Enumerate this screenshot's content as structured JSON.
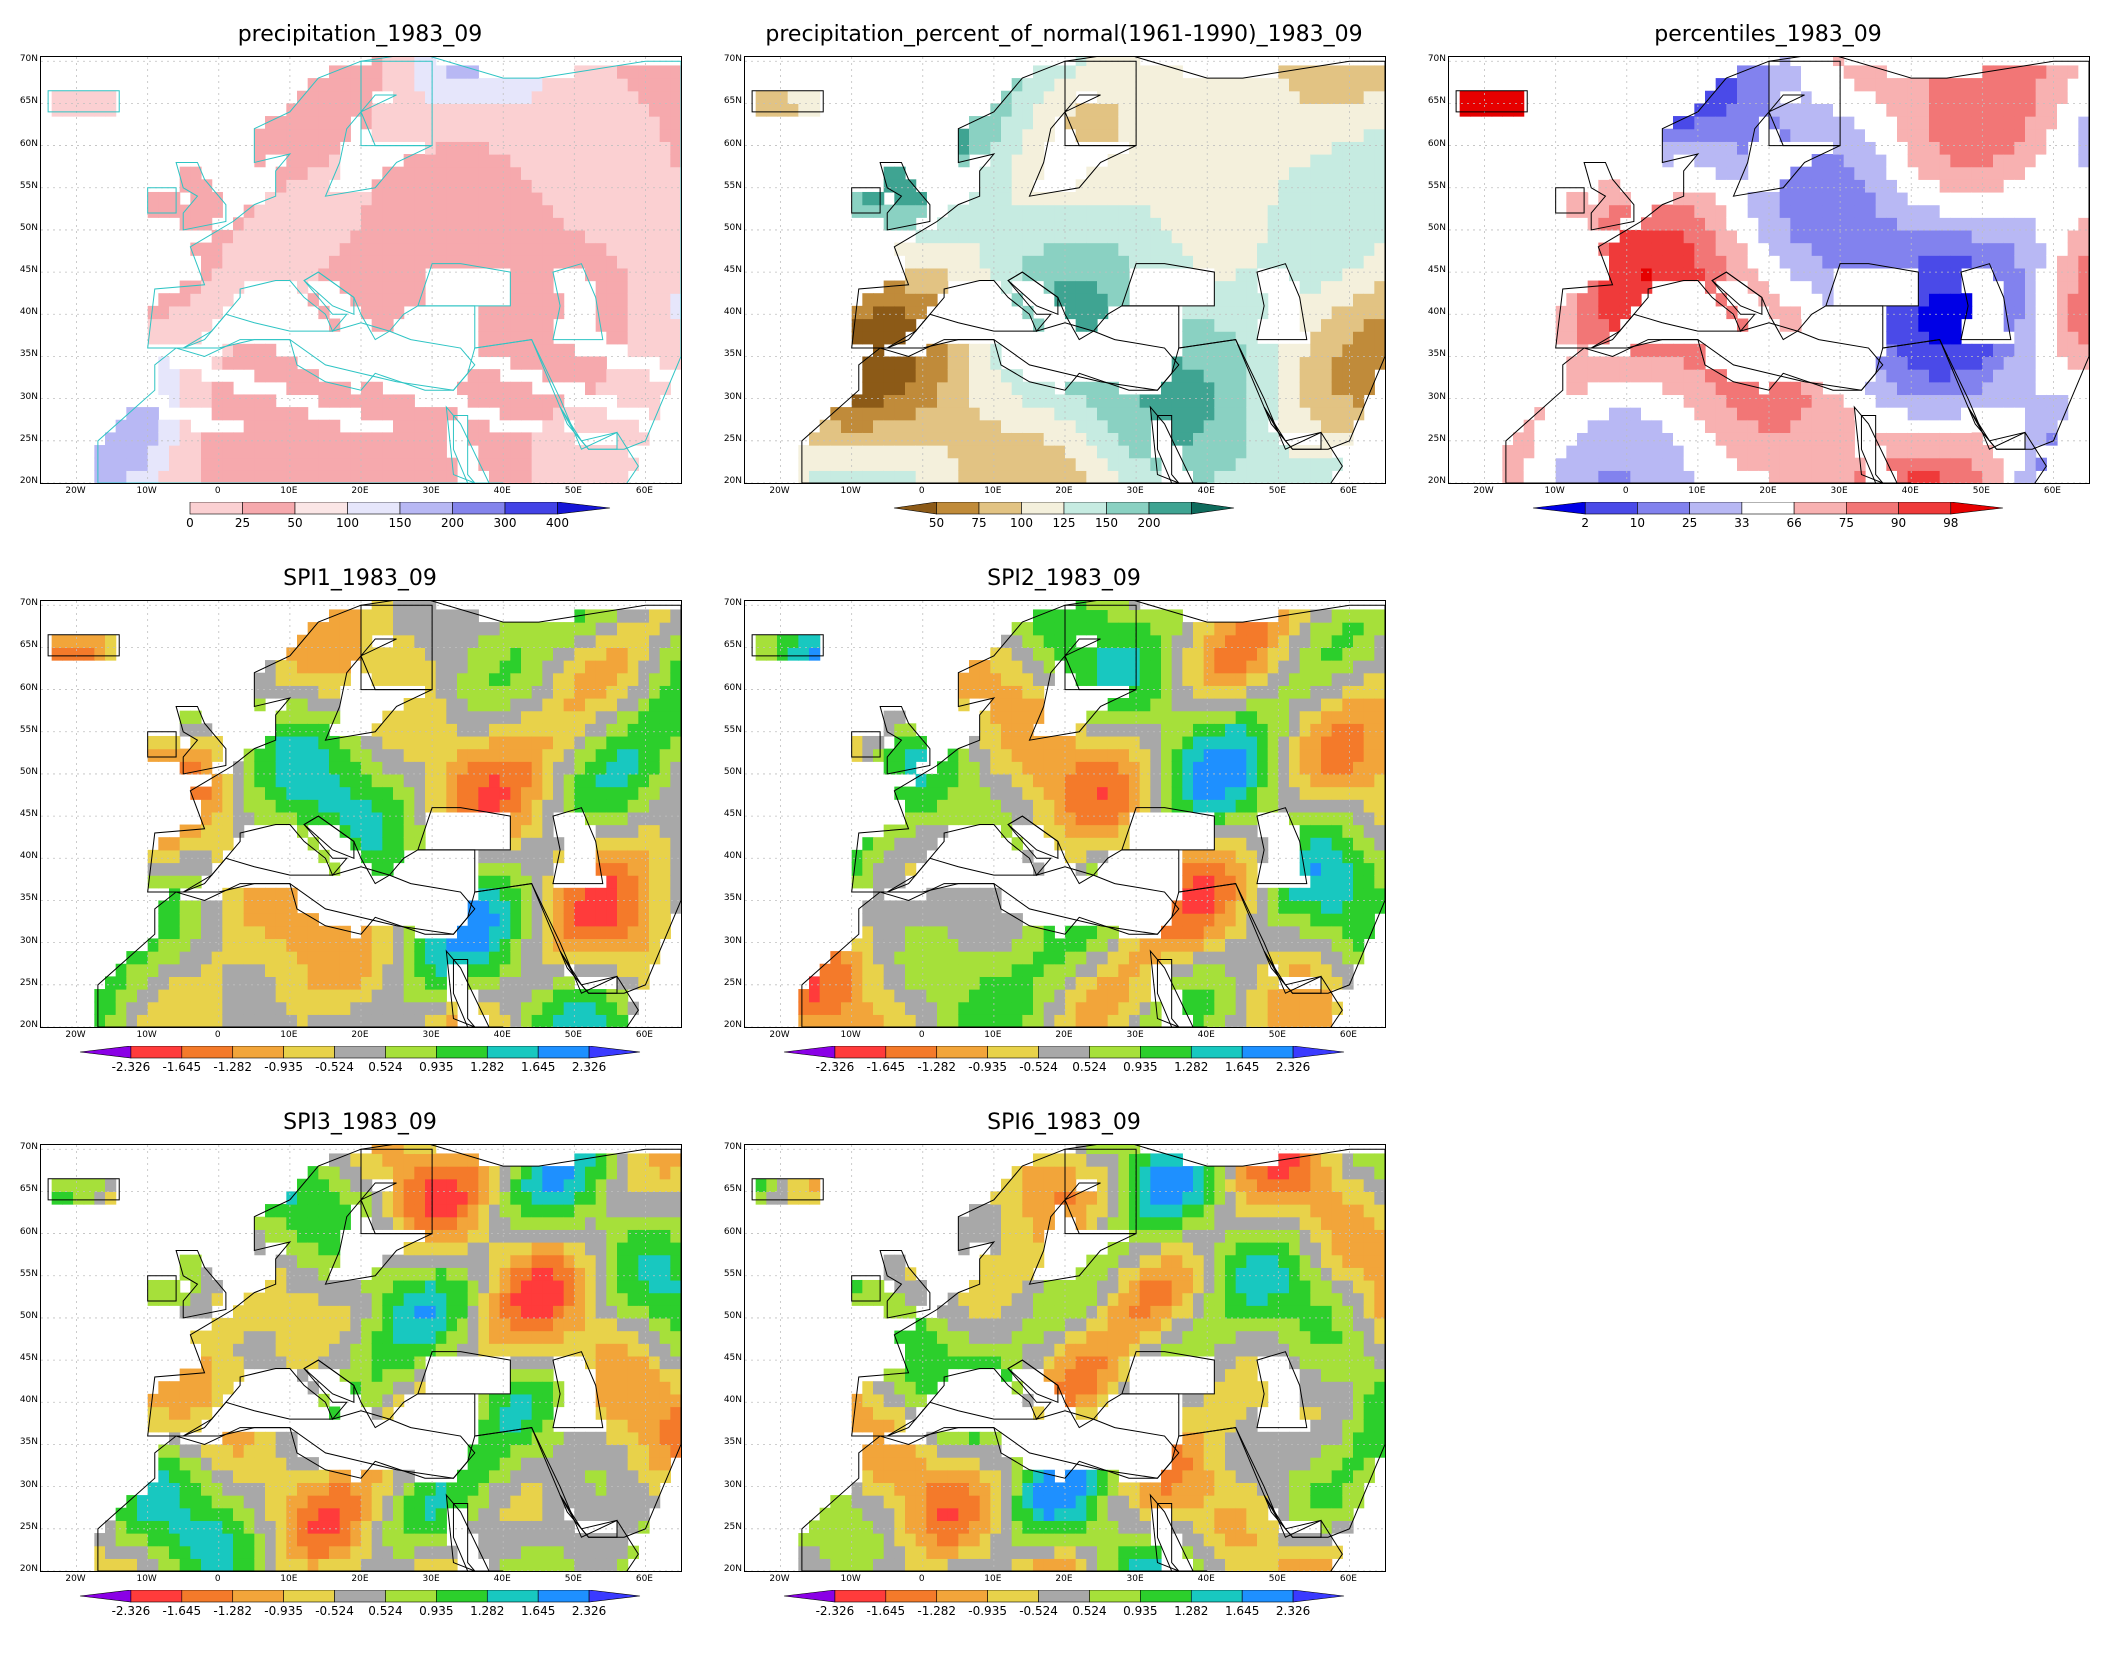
{
  "panels": [
    {
      "id": "precip",
      "title": "precipitation_1983_09",
      "scheme": "precip",
      "colorbar": {
        "labels": [
          "0",
          "25",
          "50",
          "100",
          "150",
          "200",
          "300",
          "400"
        ],
        "colors": [
          "#fbd0d2",
          "#f6a9ad",
          "#fbe6e6",
          "#e6e6fb",
          "#b8b8f4",
          "#8484ec",
          "#4343e6",
          "#1515d6"
        ]
      }
    },
    {
      "id": "pct_normal",
      "title": "precipitation_percent_of_normal(1961-1990)_1983_09",
      "scheme": "pct",
      "colorbar": {
        "labels": [
          "50",
          "75",
          "100",
          "125",
          "150",
          "200"
        ],
        "colors": [
          "#8c5a17",
          "#c08b3a",
          "#e2c383",
          "#f4f0dc",
          "#c6ebe1",
          "#8ad1c2",
          "#3fa492",
          "#0e6b5c"
        ]
      }
    },
    {
      "id": "percentiles",
      "title": "percentiles_1983_09",
      "scheme": "pctile",
      "colorbar": {
        "labels": [
          "2",
          "10",
          "25",
          "33",
          "66",
          "75",
          "90",
          "98"
        ],
        "colors": [
          "#0000e6",
          "#4a4ae8",
          "#8282ee",
          "#b8b8f4",
          "#ffffff",
          "#f8b1b1",
          "#f27676",
          "#ef3a3a",
          "#e60000"
        ]
      }
    },
    {
      "id": "spi1",
      "title": "SPI1_1983_09",
      "scheme": "spi",
      "colorbar": {
        "labels": [
          "-2.326",
          "-1.645",
          "-1.282",
          "-0.935",
          "-0.524",
          "0.524",
          "0.935",
          "1.282",
          "1.645",
          "2.326"
        ],
        "colors": [
          "#8a00e6",
          "#ff3b3b",
          "#f47a2a",
          "#f2a53a",
          "#e8d24a",
          "#a8a8a8",
          "#a6e03a",
          "#2ccf2c",
          "#18c8c0",
          "#1e90ff",
          "#3a3aff"
        ]
      }
    },
    {
      "id": "spi2",
      "title": "SPI2_1983_09",
      "scheme": "spi",
      "colorbar": {
        "labels": [
          "-2.326",
          "-1.645",
          "-1.282",
          "-0.935",
          "-0.524",
          "0.524",
          "0.935",
          "1.282",
          "1.645",
          "2.326"
        ],
        "colors": [
          "#8a00e6",
          "#ff3b3b",
          "#f47a2a",
          "#f2a53a",
          "#e8d24a",
          "#a8a8a8",
          "#a6e03a",
          "#2ccf2c",
          "#18c8c0",
          "#1e90ff",
          "#3a3aff"
        ]
      }
    },
    {
      "id": "spi3",
      "title": "SPI3_1983_09",
      "scheme": "spi",
      "colorbar": {
        "labels": [
          "-2.326",
          "-1.645",
          "-1.282",
          "-0.935",
          "-0.524",
          "0.524",
          "0.935",
          "1.282",
          "1.645",
          "2.326"
        ],
        "colors": [
          "#8a00e6",
          "#ff3b3b",
          "#f47a2a",
          "#f2a53a",
          "#e8d24a",
          "#a8a8a8",
          "#a6e03a",
          "#2ccf2c",
          "#18c8c0",
          "#1e90ff",
          "#3a3aff"
        ]
      }
    },
    {
      "id": "spi6",
      "title": "SPI6_1983_09",
      "scheme": "spi",
      "colorbar": {
        "labels": [
          "-2.326",
          "-1.645",
          "-1.282",
          "-0.935",
          "-0.524",
          "0.524",
          "0.935",
          "1.282",
          "1.645",
          "2.326"
        ],
        "colors": [
          "#8a00e6",
          "#ff3b3b",
          "#f47a2a",
          "#f2a53a",
          "#e8d24a",
          "#a8a8a8",
          "#a6e03a",
          "#2ccf2c",
          "#18c8c0",
          "#1e90ff",
          "#3a3aff"
        ]
      }
    }
  ],
  "lat_labels": [
    "70N",
    "65N",
    "60N",
    "55N",
    "50N",
    "45N",
    "40N",
    "35N",
    "30N",
    "25N",
    "20N"
  ],
  "lon_labels": [
    "20W",
    "10W",
    "0",
    "10E",
    "20E",
    "30E",
    "40E",
    "50E",
    "60E"
  ],
  "colors": {
    "border_cyan": "#2ec4c4",
    "border_black": "#000000",
    "grid": "#bfbfbf"
  }
}
